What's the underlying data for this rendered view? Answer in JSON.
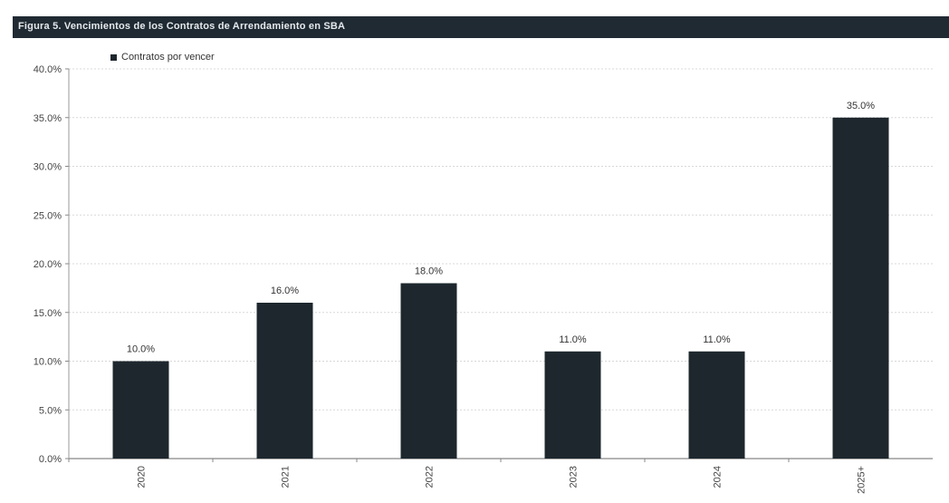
{
  "chart_data": {
    "type": "bar",
    "title": "Figura 5. Vencimientos de los Contratos de Arrendamiento en SBA",
    "categories": [
      "2020",
      "2021",
      "2022",
      "2023",
      "2024",
      "2025+"
    ],
    "series": [
      {
        "name": "Contratos por vencer",
        "values": [
          10.0,
          16.0,
          18.0,
          11.0,
          11.0,
          35.0
        ],
        "labels": [
          "10.0%",
          "16.0%",
          "18.0%",
          "11.0%",
          "11.0%",
          "35.0%"
        ],
        "color": "#1e272e"
      }
    ],
    "ylim": [
      0,
      40
    ],
    "yticks": [
      "0.0%",
      "5.0%",
      "10.0%",
      "15.0%",
      "20.0%",
      "25.0%",
      "30.0%",
      "35.0%",
      "40.0%"
    ],
    "xlabel": "",
    "ylabel": "",
    "grid": true,
    "legend_position": "top-left",
    "header_color": "#1f2a33"
  }
}
